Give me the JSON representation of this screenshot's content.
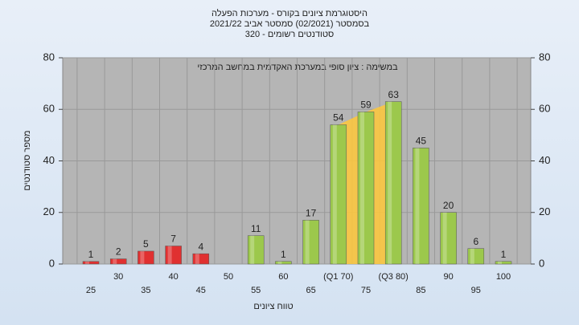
{
  "chart_data": {
    "type": "bar",
    "title": "היסטוגרמת ציונים בקורס - מערכות הפעלה",
    "subtitle": "בסמסטר  (02/2021)  סמסטר אביב 2021/22",
    "subtitle2": "סטודנטים רשומים - 320",
    "annotation": "במשימה : ציון סופי במערכת האקדמית במחשב המרכזי",
    "x_label": "טווח ציונים",
    "y_label": "מספר סטודנטים",
    "categories": [
      "25",
      "30",
      "35",
      "40",
      "45",
      "50",
      "55",
      "60",
      "65",
      "(Q1 70)",
      "75",
      "(Q3 80)",
      "85",
      "90",
      "95",
      "100"
    ],
    "values": [
      1,
      2,
      5,
      7,
      4,
      null,
      11,
      1,
      17,
      54,
      59,
      63,
      45,
      20,
      6,
      1
    ],
    "colors": [
      "#e03030",
      "#e03030",
      "#e03030",
      "#e03030",
      "#e03030",
      "#e03030",
      "#9cc84c",
      "#9cc84c",
      "#9cc84c",
      "#9cc84c",
      "#9cc84c",
      "#9cc84c",
      "#9cc84c",
      "#9cc84c",
      "#9cc84c",
      "#9cc84c"
    ],
    "highlight_color": "#ffc83a",
    "ylim": [
      0,
      80
    ],
    "yticks": [
      0,
      20,
      40,
      60,
      80
    ],
    "grid": true
  }
}
